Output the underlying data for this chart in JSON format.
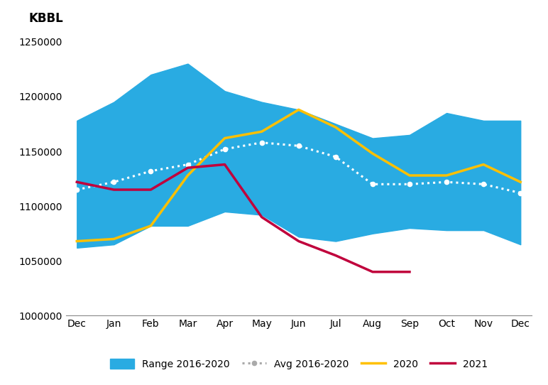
{
  "months": [
    "Dec",
    "Jan",
    "Feb",
    "Mar",
    "Apr",
    "May",
    "Jun",
    "Jul",
    "Aug",
    "Sep",
    "Oct",
    "Nov",
    "Dec"
  ],
  "range_upper": [
    1178000,
    1195000,
    1220000,
    1230000,
    1205000,
    1195000,
    1188000,
    1175000,
    1162000,
    1165000,
    1185000,
    1178000,
    1178000
  ],
  "range_lower": [
    1062000,
    1065000,
    1082000,
    1082000,
    1095000,
    1092000,
    1072000,
    1068000,
    1075000,
    1080000,
    1078000,
    1078000,
    1065000
  ],
  "avg_2016_2020": [
    1115000,
    1122000,
    1132000,
    1138000,
    1152000,
    1158000,
    1155000,
    1145000,
    1120000,
    1120000,
    1122000,
    1120000,
    1112000
  ],
  "line_2020": [
    1068000,
    1070000,
    1082000,
    1128000,
    1162000,
    1168000,
    1188000,
    1172000,
    1148000,
    1128000,
    1128000,
    1138000,
    1122000
  ],
  "line_2021": [
    1122000,
    1115000,
    1115000,
    1135000,
    1138000,
    1090000,
    1068000,
    1055000,
    1040000,
    1040000,
    null,
    null,
    null
  ],
  "ylim": [
    1000000,
    1260000
  ],
  "yticks": [
    1000000,
    1050000,
    1100000,
    1150000,
    1200000,
    1250000
  ],
  "ylabel": "KBBL",
  "range_color": "#29ABE2",
  "avg_color": "#FFFFFF",
  "color_2020": "#FFC000",
  "color_2021": "#C0003C",
  "legend_labels": [
    "Range 2016-2020",
    "Avg 2016-2020",
    "2020",
    "2021"
  ],
  "background_color": "#FFFFFF",
  "figsize": [
    7.72,
    5.42
  ],
  "dpi": 100
}
